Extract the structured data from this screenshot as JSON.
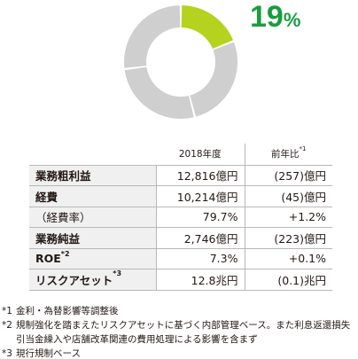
{
  "chart_data": {
    "type": "pie",
    "slices": [
      {
        "value": 19,
        "color": "#b5d21e",
        "highlight": true
      },
      {
        "value": 81,
        "color": "#cfcfcf",
        "highlight": false
      }
    ],
    "segments_gray": 3
  },
  "highlight": {
    "value": "19",
    "unit": "%"
  },
  "table": {
    "headers": [
      "2018年度",
      "前年比",
      "*1"
    ],
    "rows": [
      {
        "label": "業務粗利益",
        "sup": "",
        "value": "12,816億円",
        "change": "(257)億円",
        "bold": true
      },
      {
        "label": "経費",
        "sup": "",
        "value": "10,214億円",
        "change": "(45)億円",
        "bold": true
      },
      {
        "label": "（経費率）",
        "sup": "",
        "value": "79.7%",
        "change": "+1.2%",
        "bold": false
      },
      {
        "label": "業務純益",
        "sup": "",
        "value": "2,746億円",
        "change": "(223)億円",
        "bold": true
      },
      {
        "label": "ROE",
        "sup": "*2",
        "value": "7.3%",
        "change": "+0.1%",
        "bold": true
      },
      {
        "label": "リスクアセット",
        "sup": "*3",
        "value": "12.8兆円",
        "change": "(0.1)兆円",
        "bold": true
      }
    ]
  },
  "notes": [
    {
      "mark": "*1",
      "text": "金利・為替影響等調整後"
    },
    {
      "mark": "*2",
      "text": "規制強化を踏まえたリスクアセットに基づく内部管理ベース。また利息返還損失引当金繰入や店舗改革関連の費用処理による影響を含まず"
    },
    {
      "mark": "*3",
      "text": "現行規制ベース"
    }
  ]
}
